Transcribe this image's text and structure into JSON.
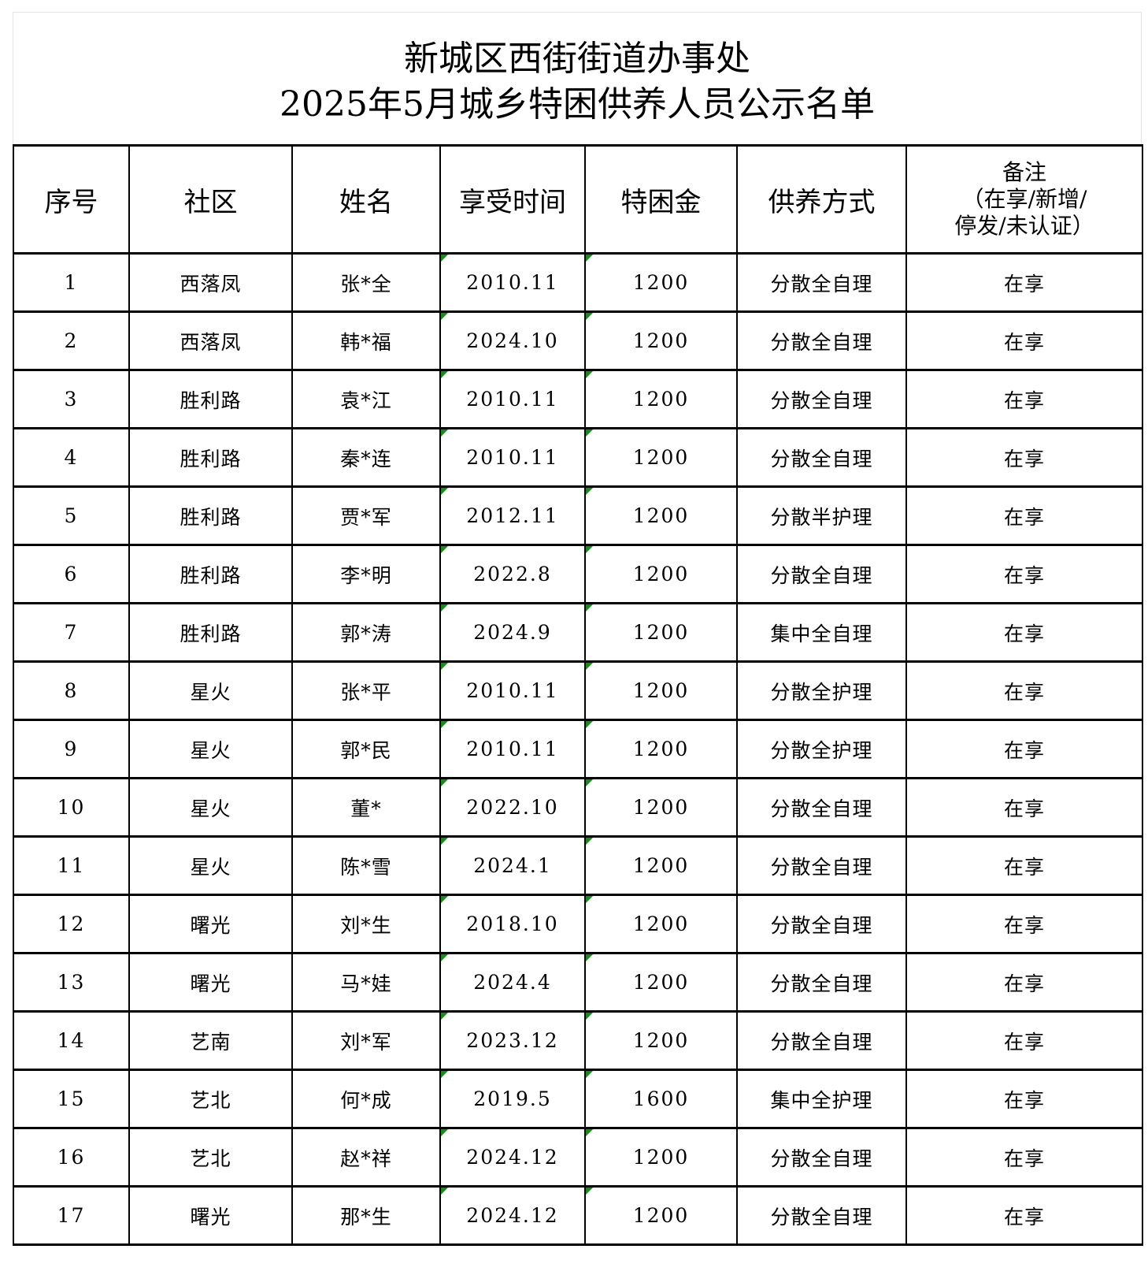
{
  "title": {
    "line1": "新城区西街街道办事处",
    "line2": "2025年5月城乡特困供养人员公示名单"
  },
  "table": {
    "headers": [
      "序号",
      "社区",
      "姓名",
      "享受时间",
      "特困金",
      "供养方式"
    ],
    "remark_header": {
      "line1": "备注",
      "line2": "（在享/新增/",
      "line3": "停发/未认证）"
    },
    "marker_color": "#1a8a1a",
    "rows": [
      [
        "1",
        "西落凤",
        "张*全",
        "2010.11",
        "1200",
        "分散全自理",
        "在享"
      ],
      [
        "2",
        "西落凤",
        "韩*福",
        "2024.10",
        "1200",
        "分散全自理",
        "在享"
      ],
      [
        "3",
        "胜利路",
        "袁*江",
        "2010.11",
        "1200",
        "分散全自理",
        "在享"
      ],
      [
        "4",
        "胜利路",
        "秦*连",
        "2010.11",
        "1200",
        "分散全自理",
        "在享"
      ],
      [
        "5",
        "胜利路",
        "贾*军",
        "2012.11",
        "1200",
        "分散半护理",
        "在享"
      ],
      [
        "6",
        "胜利路",
        "李*明",
        "2022.8",
        "1200",
        "分散全自理",
        "在享"
      ],
      [
        "7",
        "胜利路",
        "郭*涛",
        "2024.9",
        "1200",
        "集中全自理",
        "在享"
      ],
      [
        "8",
        "星火",
        "张*平",
        "2010.11",
        "1200",
        "分散全护理",
        "在享"
      ],
      [
        "9",
        "星火",
        "郭*民",
        "2010.11",
        "1200",
        "分散全护理",
        "在享"
      ],
      [
        "10",
        "星火",
        "董*",
        "2022.10",
        "1200",
        "分散全自理",
        "在享"
      ],
      [
        "11",
        "星火",
        "陈*雪",
        "2024.1",
        "1200",
        "分散全自理",
        "在享"
      ],
      [
        "12",
        "曙光",
        "刘*生",
        "2018.10",
        "1200",
        "分散全自理",
        "在享"
      ],
      [
        "13",
        "曙光",
        "马*娃",
        "2024.4",
        "1200",
        "分散全自理",
        "在享"
      ],
      [
        "14",
        "艺南",
        "刘*军",
        "2023.12",
        "1200",
        "分散全自理",
        "在享"
      ],
      [
        "15",
        "艺北",
        "何*成",
        "2019.5",
        "1600",
        "集中全护理",
        "在享"
      ],
      [
        "16",
        "艺北",
        "赵*祥",
        "2024.12",
        "1200",
        "分散全自理",
        "在享"
      ],
      [
        "17",
        "曙光",
        "那*生",
        "2024.12",
        "1200",
        "分散全自理",
        "在享"
      ]
    ]
  }
}
